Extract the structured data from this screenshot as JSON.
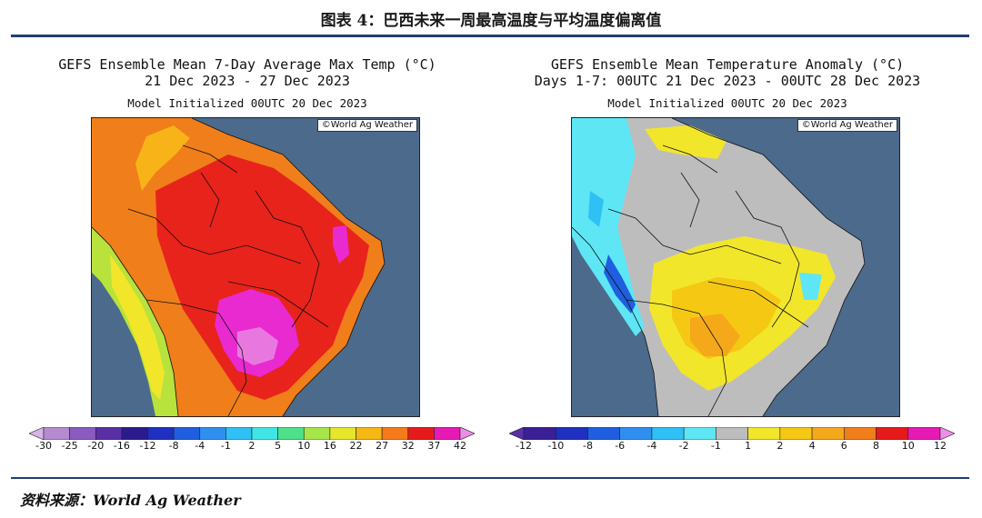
{
  "figure_title": "图表 4：巴西未来一周最高温度与平均温度偏离值",
  "source": "资料来源：World Ag Weather",
  "left_panel": {
    "title_line1": "GEFS Ensemble Mean 7-Day Average Max Temp (°C)",
    "title_line2": "21 Dec 2023 - 27 Dec 2023",
    "title_line3": "Model Initialized 00UTC 20 Dec 2023",
    "credit": "©World Ag Weather",
    "colorbar": {
      "ticks": [
        "-30",
        "-25",
        "-20",
        "-16",
        "-12",
        "-8",
        "-4",
        "-1",
        "2",
        "5",
        "10",
        "16",
        "22",
        "27",
        "32",
        "37",
        "42"
      ],
      "colors": [
        "#d9b3e6",
        "#b58ad0",
        "#8a5cc0",
        "#5a2fa6",
        "#2a1a8c",
        "#1f2fbf",
        "#1f5fdf",
        "#2f8fef",
        "#2fc0f5",
        "#40e6e6",
        "#4ee08a",
        "#a6e64a",
        "#e6e62a",
        "#f5b814",
        "#f57a1a",
        "#e61a1a",
        "#e61ab4",
        "#f08ce6"
      ]
    },
    "map_colors": {
      "ocean": "#4b6a8c",
      "red": "#e8231c",
      "orange": "#f07e1a",
      "amber": "#f7b318",
      "yellow": "#f2e62a",
      "lime": "#b8e23c",
      "magenta": "#e82ad0",
      "pink": "#e878e0"
    }
  },
  "right_panel": {
    "title_line1": "GEFS Ensemble Mean Temperature Anomaly (°C)",
    "title_line2": "Days 1-7: 00UTC 21 Dec 2023 - 00UTC 28 Dec 2023",
    "title_line3": "Model Initialized 00UTC 20 Dec 2023",
    "credit": "©World Ag Weather",
    "colorbar": {
      "ticks": [
        "-12",
        "-10",
        "-8",
        "-6",
        "-4",
        "-2",
        "-1",
        "1",
        "2",
        "4",
        "6",
        "8",
        "10",
        "12"
      ],
      "colors": [
        "#5a2fa6",
        "#3a1f96",
        "#1f2fbf",
        "#1f5fdf",
        "#2f8fef",
        "#2fc0f5",
        "#5ee6f5",
        "#bdbdbd",
        "#f2e62a",
        "#f5c814",
        "#f5a81a",
        "#f07e1a",
        "#e61a1a",
        "#e61ab4",
        "#f08ce6"
      ]
    },
    "map_colors": {
      "ocean": "#4b6a8c",
      "gray": "#bdbdbd",
      "yellow": "#f2e62a",
      "gold": "#f5c814",
      "orange": "#f5a81a",
      "cyan": "#5ee6f5",
      "lightblue": "#2fc0f5",
      "blue": "#1f5fdf"
    }
  }
}
